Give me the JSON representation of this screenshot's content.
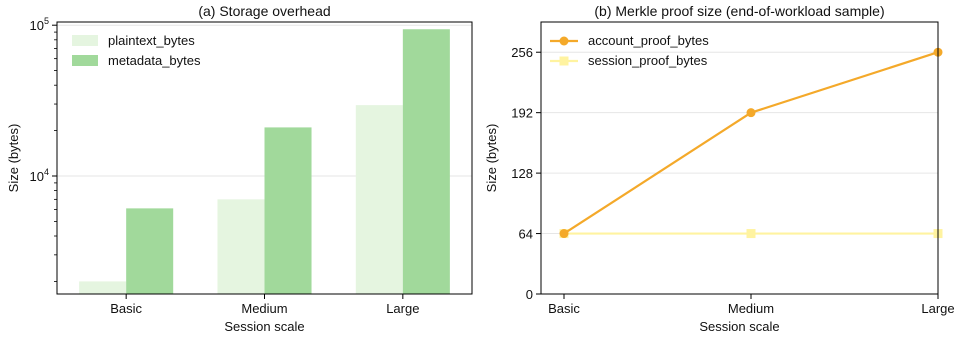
{
  "chart_data": [
    {
      "type": "bar",
      "title": "(a) Storage overhead",
      "xlabel": "Session scale",
      "ylabel": "Size (bytes)",
      "yscale": "log",
      "ylim": [
        1650,
        105000
      ],
      "yticks": [
        {
          "value": 10000,
          "base": "10",
          "exp": "4"
        },
        {
          "value": 100000,
          "base": "10",
          "exp": "5"
        }
      ],
      "grid": "horizontal",
      "legend": "top-left",
      "categories": [
        "Basic",
        "Medium",
        "Large"
      ],
      "series": [
        {
          "name": "plaintext_bytes",
          "color": "#e5f5e0",
          "values": [
            2000,
            7000,
            29500
          ]
        },
        {
          "name": "metadata_bytes",
          "color": "#a1d99b",
          "values": [
            6100,
            21000,
            94000
          ]
        }
      ]
    },
    {
      "type": "line",
      "title": "(b) Merkle proof size (end-of-workload sample)",
      "xlabel": "Session scale",
      "ylabel": "Size (bytes)",
      "ylim": [
        0,
        288
      ],
      "yticks": [
        0,
        64,
        128,
        192,
        256
      ],
      "grid": "horizontal",
      "legend": "top-left",
      "categories": [
        "Basic",
        "Medium",
        "Large"
      ],
      "series": [
        {
          "name": "account_proof_bytes",
          "color": "#f4a92a",
          "marker": "circle",
          "values": [
            64,
            192,
            256
          ]
        },
        {
          "name": "session_proof_bytes",
          "color": "#fff3a0",
          "marker": "square",
          "values": [
            64,
            64,
            64
          ]
        }
      ]
    }
  ]
}
